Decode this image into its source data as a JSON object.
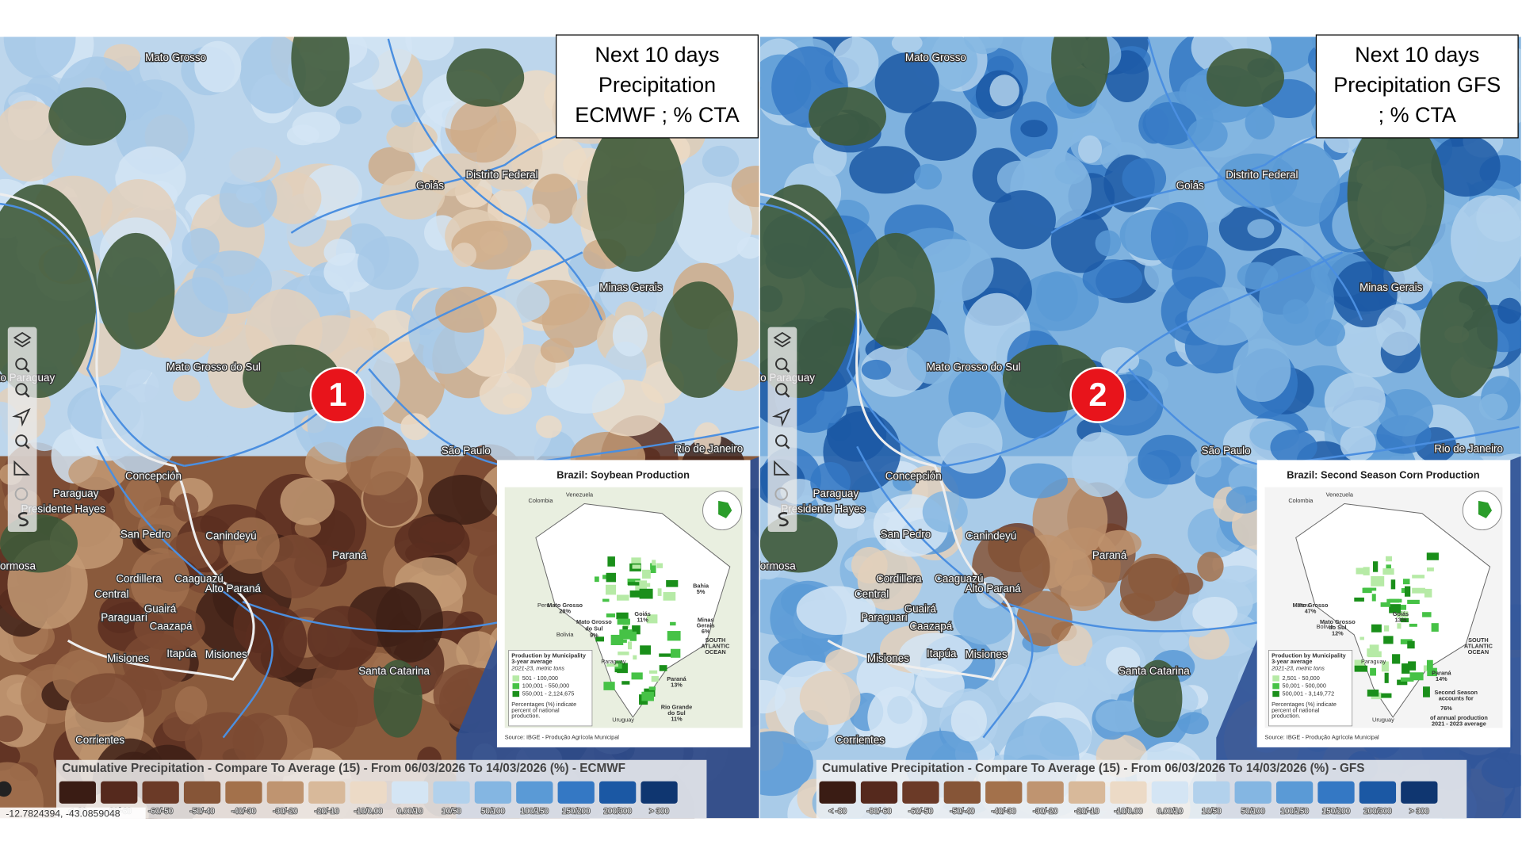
{
  "panels": [
    {
      "title_lines": [
        "Next 10 days",
        "Precipitation",
        "ECMWF ; % CTA"
      ],
      "badge": "1",
      "inset": {
        "title": "Brazil: Soybean Production",
        "labels": [
          "Colombia",
          "Venezuela",
          "Peru",
          "Bolivia",
          "Paraguay",
          "Uruguay",
          "Mato Grosso",
          "28%",
          "Mato Grosso",
          "do Sul",
          "9%",
          "Goiás",
          "11%",
          "Bahia",
          "5%",
          "Minas",
          "Gerais",
          "6%",
          "Paraná",
          "13%",
          "Rio Grande",
          "do Sul",
          "11%",
          "SOUTH",
          "ATLANTIC",
          "OCEAN"
        ],
        "legend_title": "Production by Municipality",
        "legend_sub": "3-year average",
        "legend_units": "2021-23, metric tons",
        "classes": [
          "501 - 100,000",
          "100,001 - 550,000",
          "550,001 - 2,124,675"
        ],
        "note": [
          "Percentages (%) indicate",
          "percent of national",
          "production."
        ],
        "source": "Source: IBGE - Produção Agrícola Municipal"
      },
      "legend_title": "Cumulative Precipitation - Compare To Average (15) - From 06/03/2026 To 14/03/2026 (%) - ECMWF"
    },
    {
      "title_lines": [
        "Next 10 days",
        "Precipitation GFS",
        "; % CTA"
      ],
      "badge": "2",
      "inset": {
        "title": "Brazil: Second Season Corn Production",
        "labels": [
          "Colombia",
          "Venezuela",
          "Peru",
          "Bolivia",
          "Paraguay",
          "Uruguay",
          "Mato Grosso",
          "47%",
          "Mato Grosso",
          "do Sul",
          "12%",
          "Goiás",
          "13%",
          "Paraná",
          "14%",
          "SOUTH",
          "ATLANTIC",
          "OCEAN",
          "Second Season",
          "accounts for",
          "76%",
          "of annual production",
          "2021 - 2023 average"
        ],
        "legend_title": "Production by Municipality",
        "legend_sub": "3-year average",
        "legend_units": "2021-23, metric tons",
        "classes": [
          "2,501 - 50,000",
          "50,001 - 500,000",
          "500,001 - 3,149,772"
        ],
        "note": [
          "Percentages (%) indicate",
          "percent of national",
          "production."
        ],
        "source": "Source: IBGE - Produção Agrícola Municipal"
      },
      "legend_title": "Cumulative Precipitation - Compare To Average (15) - From 06/03/2026 To 14/03/2026 (%) - GFS"
    }
  ],
  "legend": {
    "labels": [
      "< -80",
      "-80/-60",
      "-60/-50",
      "-50/-40",
      "-40/-30",
      "-30/-20",
      "-20/-10",
      "-10/0.00",
      "0.00/10",
      "10/50",
      "50/100",
      "100/150",
      "150/200",
      "200/300",
      "> 300"
    ],
    "colors": [
      "#3a1c14",
      "#55291d",
      "#6b3a27",
      "#865537",
      "#a3714b",
      "#bf9470",
      "#d8b99a",
      "#ecdac6",
      "#d4e5f4",
      "#b2d1ec",
      "#84b6e2",
      "#5a9ad6",
      "#3478c4",
      "#1b58a4",
      "#0f3670"
    ]
  },
  "places": [
    "Mato Grosso",
    "Goiás",
    "Distrito Federal",
    "Minas Gerais",
    "Mato Grosso do Sul",
    "Alto Paraguay",
    "São Paulo",
    "Rio de Janeiro",
    "Concepción",
    "Paraguay",
    "Presidente Hayes",
    "San Pedro",
    "Canindeyú",
    "Paraná",
    "Cordillera",
    "Caaguazú",
    "Alto Paraná",
    "Central",
    "Paraguarí",
    "Guairá",
    "Caazapá",
    "Formosa",
    "Itapúa",
    "Misiones",
    "Misiones",
    "Santa Catarina",
    "Corrientes"
  ],
  "coordinates": "-12.7824394, -43.0859048"
}
